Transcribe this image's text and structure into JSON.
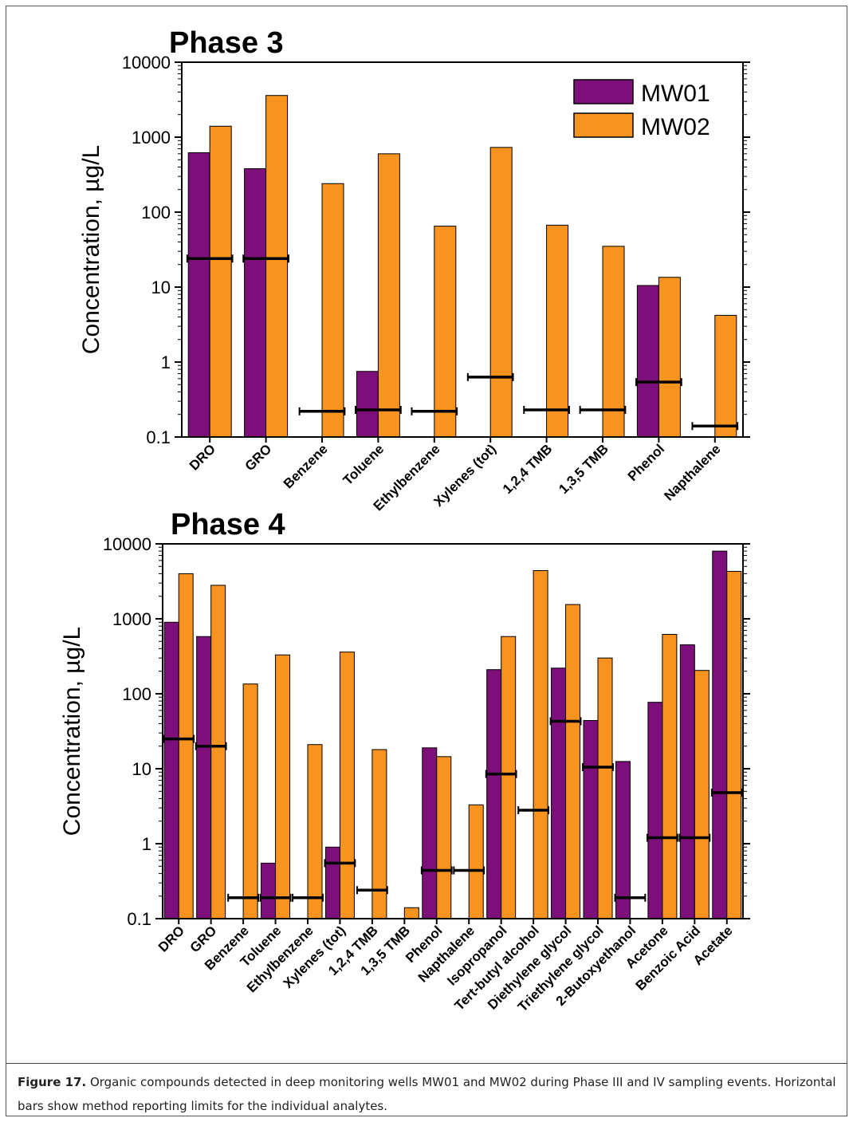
{
  "caption": {
    "label": "Figure 17.",
    "text": " Organic compounds detected in deep monitoring wells MW01 and MW02 during Phase III and IV sampling events.  Horizontal bars show method reporting limits for the individual analytes."
  },
  "colors": {
    "MW01": "#7d0f7a",
    "MW02": "#f7931e",
    "axis": "#000000"
  },
  "chart_data": [
    {
      "type": "bar",
      "title": "Phase 3",
      "ylabel": "Concentration, µg/L",
      "yscale": "log",
      "ylim": [
        0.1,
        10000
      ],
      "yticks": [
        "0.1",
        "1",
        "10",
        "100",
        "1000",
        "10000"
      ],
      "legend": "top-right",
      "categories": [
        "DRO",
        "GRO",
        "Benzene",
        "Toluene",
        "Ethylbenzene",
        "Xylenes (tot)",
        "1,2,4 TMB",
        "1,3,5 TMB",
        "Phenol",
        "Napthalene"
      ],
      "series": [
        {
          "name": "MW01",
          "values": [
            620,
            380,
            null,
            0.75,
            null,
            null,
            null,
            null,
            10.5,
            null
          ]
        },
        {
          "name": "MW02",
          "values": [
            1400,
            3600,
            240,
            600,
            65,
            730,
            67,
            35,
            13.5,
            4.2
          ]
        }
      ],
      "reporting_limits": [
        24,
        24,
        0.22,
        0.23,
        0.22,
        0.63,
        0.23,
        0.23,
        0.54,
        0.14
      ]
    },
    {
      "type": "bar",
      "title": "Phase 4",
      "ylabel": "Concentration, µg/L",
      "yscale": "log",
      "ylim": [
        0.1,
        10000
      ],
      "yticks": [
        "0.1",
        "1",
        "10",
        "100",
        "1000",
        "10000"
      ],
      "categories": [
        "DRO",
        "GRO",
        "Benzene",
        "Toluene",
        "Ethylbenzene",
        "Xylenes (tot)",
        "1,2,4 TMB",
        "1,3,5 TMB",
        "Phenol",
        "Napthalene",
        "Isopropanol",
        "Tert-butyl alcohol",
        "Diethylene glycol",
        "Triethylene glycol",
        "2-Butoxyethanol",
        "Acetone",
        "Benzoic Acid",
        "Acetate"
      ],
      "series": [
        {
          "name": "MW01",
          "values": [
            900,
            580,
            null,
            0.55,
            null,
            0.9,
            null,
            null,
            19,
            null,
            210,
            null,
            220,
            44,
            12.5,
            77,
            450,
            8000
          ]
        },
        {
          "name": "MW02",
          "values": [
            4000,
            2800,
            135,
            330,
            21,
            360,
            18,
            0.14,
            14.5,
            3.3,
            580,
            4400,
            1550,
            300,
            null,
            620,
            205,
            4300
          ]
        }
      ],
      "reporting_limits": [
        25,
        20,
        0.19,
        0.19,
        0.19,
        0.55,
        0.24,
        null,
        0.44,
        0.44,
        8.5,
        2.8,
        43,
        10.5,
        0.19,
        1.2,
        1.2,
        4.8
      ]
    }
  ]
}
